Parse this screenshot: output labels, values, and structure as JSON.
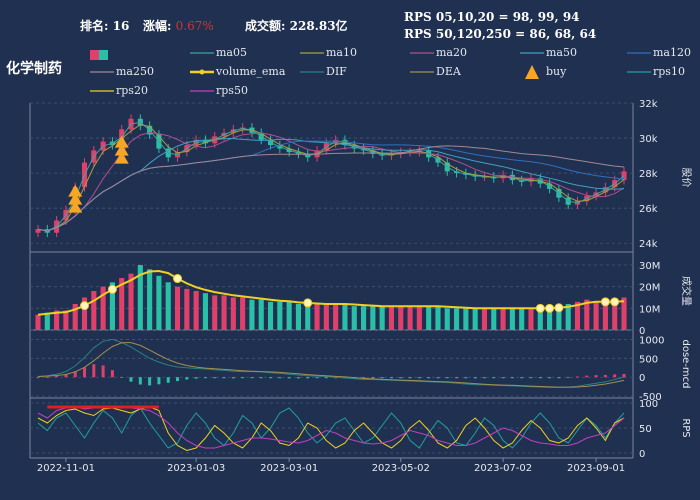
{
  "header": {
    "rank_label": "排名:",
    "rank_value": "16",
    "change_label": "涨幅:",
    "change_value": "0.67%",
    "turnover_label": "成交额:",
    "turnover_value": "228.83亿",
    "rps_line1": "RPS 05,10,20 = 98, 99, 94",
    "rps_line2": "RPS 50,120,250 = 86, 68, 64"
  },
  "chart_data": {
    "type": "line",
    "title": "化学制药",
    "legend": [
      {
        "name": "ma05",
        "color": "#3aa6a0"
      },
      {
        "name": "ma10",
        "color": "#a8a040"
      },
      {
        "name": "ma20",
        "color": "#b05090"
      },
      {
        "name": "ma50",
        "color": "#40a0c0"
      },
      {
        "name": "ma120",
        "color": "#3070c0"
      },
      {
        "name": "ma250",
        "color": "#a08898"
      },
      {
        "name": "volume_ema",
        "color": "#f0d020"
      },
      {
        "name": "DIF",
        "color": "#2a8080"
      },
      {
        "name": "DEA",
        "color": "#a09050"
      },
      {
        "name": "buy",
        "color": "#f5a623"
      },
      {
        "name": "rps10",
        "color": "#20a0a0"
      },
      {
        "name": "rps20",
        "color": "#f0d020"
      },
      {
        "name": "rps50",
        "color": "#c040c0"
      }
    ],
    "x_ticks": [
      "2022-11-01",
      "2023-01-03",
      "2023-03-01",
      "2023-05-02",
      "2023-07-02",
      "2023-09-01"
    ],
    "panels": [
      {
        "name": "price",
        "ylabel": "股价",
        "ylim": [
          23500,
          32000
        ],
        "yticks": [
          "24k",
          "26k",
          "28k",
          "30k",
          "32k"
        ]
      },
      {
        "name": "volume",
        "ylabel": "成交量",
        "ylim": [
          0,
          36
        ],
        "yticks": [
          "0",
          "10M",
          "20M",
          "30M"
        ]
      },
      {
        "name": "macd",
        "ylabel": "dose-mcd",
        "ylim": [
          -550,
          1250
        ],
        "yticks": [
          "-500",
          "0",
          "500",
          "1000"
        ]
      },
      {
        "name": "rps",
        "ylabel": "RPS",
        "ylim": [
          -10,
          110
        ],
        "yticks": [
          "0",
          "50",
          "100"
        ]
      }
    ],
    "series": [
      {
        "name": "close",
        "values": [
          24800,
          24600,
          25300,
          25900,
          27200,
          28600,
          29300,
          29800,
          29600,
          30500,
          31100,
          30700,
          30200,
          29400,
          28900,
          29200,
          29600,
          29900,
          29700,
          30100,
          30300,
          30500,
          30600,
          30300,
          29900,
          29600,
          29400,
          29200,
          29100,
          28900,
          29300,
          29700,
          29900,
          29600,
          29400,
          29300,
          29100,
          29000,
          29100,
          29200,
          29200,
          29300,
          28900,
          28600,
          28100,
          28000,
          27900,
          27800,
          27800,
          27700,
          27900,
          27600,
          27500,
          27700,
          27400,
          27100,
          26600,
          26200,
          26400,
          26700,
          26900,
          27200,
          27600,
          28100
        ]
      },
      {
        "name": "volume",
        "values": [
          7,
          8,
          9,
          9,
          12,
          15,
          18,
          20,
          22,
          24,
          26,
          30,
          28,
          25,
          22,
          20,
          19,
          18,
          17,
          16,
          16,
          15,
          15,
          14,
          14,
          13,
          13,
          13,
          12,
          12,
          12,
          12,
          12,
          12,
          11,
          11,
          11,
          11,
          11,
          11,
          11,
          11,
          11,
          11,
          10,
          10,
          10,
          10,
          10,
          10,
          10,
          10,
          10,
          10,
          10,
          10,
          11,
          12,
          13,
          14,
          13,
          12,
          13,
          15
        ]
      },
      {
        "name": "macd",
        "values": [
          20,
          40,
          80,
          150,
          300,
          520,
          780,
          950,
          1000,
          920,
          800,
          650,
          500,
          400,
          320,
          270,
          250,
          230,
          220,
          200,
          180,
          160,
          150,
          150,
          140,
          120,
          100,
          80,
          60,
          40,
          30,
          20,
          0,
          -20,
          -40,
          -60,
          -60,
          -70,
          -80,
          -90,
          -100,
          -110,
          -120,
          -130,
          -140,
          -160,
          -180,
          -200,
          -200,
          -210,
          -220,
          -230,
          -240,
          -250,
          -260,
          -270,
          -270,
          -260,
          -240,
          -200,
          -160,
          -120,
          -60,
          0
        ]
      },
      {
        "name": "rps10",
        "values": [
          60,
          45,
          70,
          80,
          55,
          30,
          60,
          85,
          70,
          40,
          75,
          90,
          60,
          35,
          10,
          20,
          55,
          80,
          60,
          30,
          15,
          40,
          75,
          60,
          30,
          50,
          80,
          90,
          70,
          40,
          20,
          35,
          60,
          70,
          45,
          20,
          30,
          55,
          80,
          60,
          25,
          10,
          40,
          65,
          50,
          20,
          15,
          40,
          70,
          55,
          25,
          10,
          30,
          60,
          80,
          60,
          30,
          20,
          45,
          70,
          55,
          30,
          60,
          80
        ]
      },
      {
        "name": "rps20",
        "values": [
          70,
          60,
          75,
          85,
          88,
          80,
          75,
          88,
          90,
          85,
          80,
          88,
          92,
          85,
          40,
          15,
          5,
          10,
          30,
          55,
          40,
          20,
          10,
          30,
          60,
          45,
          20,
          15,
          30,
          60,
          50,
          25,
          10,
          20,
          45,
          60,
          40,
          20,
          10,
          25,
          50,
          65,
          45,
          20,
          10,
          25,
          55,
          70,
          50,
          25,
          10,
          20,
          45,
          65,
          50,
          25,
          20,
          30,
          55,
          70,
          50,
          25,
          60,
          70
        ]
      },
      {
        "name": "rps50",
        "values": [
          80,
          70,
          85,
          90,
          92,
          88,
          90,
          92,
          93,
          91,
          90,
          88,
          85,
          75,
          60,
          40,
          25,
          15,
          10,
          10,
          15,
          20,
          25,
          30,
          30,
          28,
          25,
          22,
          20,
          25,
          35,
          45,
          40,
          30,
          25,
          20,
          18,
          20,
          25,
          35,
          45,
          40,
          35,
          25,
          20,
          15,
          15,
          20,
          30,
          40,
          50,
          45,
          35,
          25,
          20,
          18,
          15,
          15,
          20,
          30,
          35,
          40,
          55,
          70
        ]
      }
    ],
    "grid": true
  }
}
